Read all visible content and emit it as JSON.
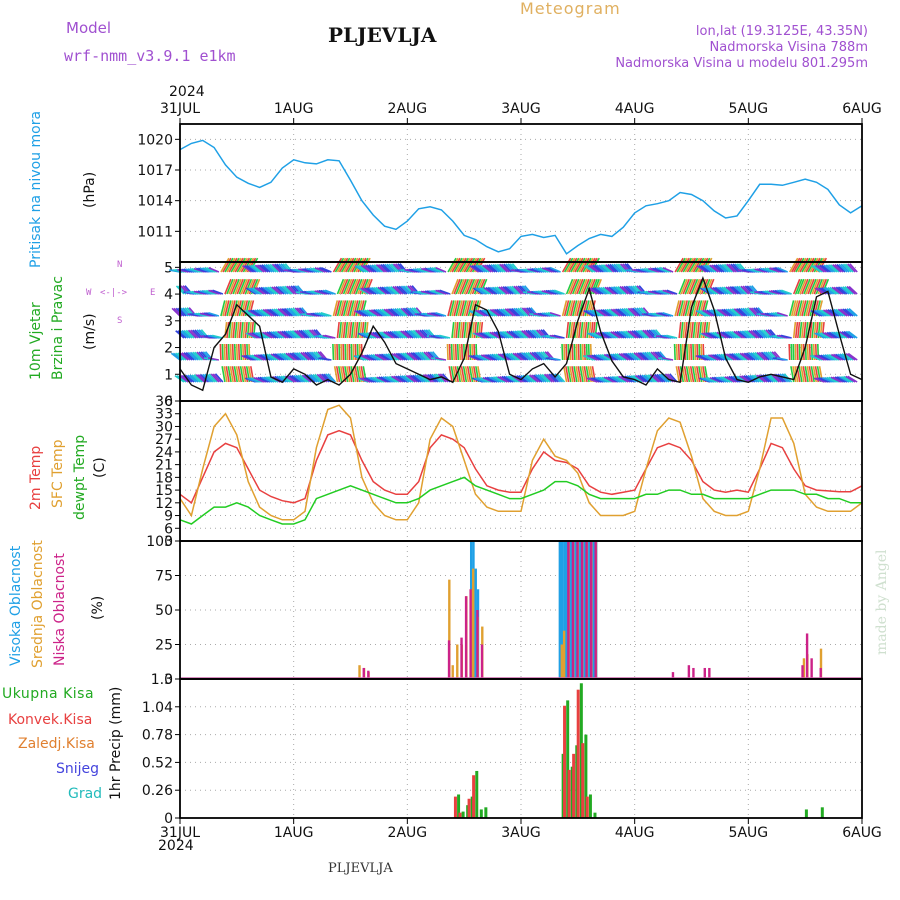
{
  "header": {
    "model_label": "Model",
    "model_name": "wrf-nmm_v3.9.1  e1km",
    "station": "PLJEVLJA",
    "meteogram_label": "Meteogram",
    "lonlat": "lon,lat (19.3125E, 43.35N)",
    "elevation": "Nadmorska Visina 788m",
    "model_elevation": "Nadmorska Visina u modelu 801.295m",
    "footer_station": "PLJEVLJA",
    "watermark": "made by Angel"
  },
  "colors": {
    "pressure": "#1fa0e6",
    "t2m": "#e84040",
    "sfc": "#e0a030",
    "dewpt": "#22cc22",
    "high_cloud": "#1fa0e6",
    "mid_cloud": "#e0a030",
    "low_cloud": "#cc2288",
    "total_precip": "#22aa22",
    "conv_precip": "#e84040",
    "frozen_precip": "#e08030",
    "snow": "#4444dd",
    "hail": "#22bbbb",
    "header_purple": "#a050d0",
    "header_orange": "#e0b060"
  },
  "chart_data": [
    {
      "type": "line",
      "title": "",
      "ylabel": "Pritisak na nivou mora",
      "yunit": "(hPa)",
      "ylim": [
        1008,
        1021.5
      ],
      "yticks": [
        1011,
        1014,
        1017,
        1020
      ],
      "xticks": [
        "31JUL",
        "1AUG",
        "2AUG",
        "3AUG",
        "4AUG",
        "5AUG",
        "6AUG"
      ],
      "year_label": "2024",
      "x_days": [
        0,
        0.1,
        0.2,
        0.3,
        0.4,
        0.5,
        0.6,
        0.7,
        0.8,
        0.9,
        1.0,
        1.1,
        1.2,
        1.3,
        1.4,
        1.5,
        1.6,
        1.7,
        1.8,
        1.9,
        2.0,
        2.1,
        2.2,
        2.3,
        2.4,
        2.5,
        2.6,
        2.7,
        2.8,
        2.9,
        3.0,
        3.1,
        3.2,
        3.3,
        3.4,
        3.5,
        3.6,
        3.7,
        3.8,
        3.9,
        4.0,
        4.1,
        4.2,
        4.3,
        4.4,
        4.5,
        4.6,
        4.7,
        4.8,
        4.9,
        5.0,
        5.1,
        5.2,
        5.3,
        5.4,
        5.5,
        5.6,
        5.7,
        5.8,
        5.9,
        6.0
      ],
      "series": [
        {
          "name": "",
          "values": [
            1019.0,
            1019.6,
            1019.9,
            1019.2,
            1017.5,
            1016.3,
            1015.7,
            1015.3,
            1015.8,
            1017.2,
            1018.0,
            1017.7,
            1017.6,
            1018.0,
            1017.9,
            1016.0,
            1014.0,
            1012.6,
            1011.5,
            1011.2,
            1012.0,
            1013.2,
            1013.4,
            1013.1,
            1012.0,
            1010.6,
            1010.2,
            1009.5,
            1009.0,
            1009.3,
            1010.5,
            1010.7,
            1010.4,
            1010.6,
            1008.8,
            1009.6,
            1010.3,
            1010.7,
            1010.5,
            1011.4,
            1012.8,
            1013.5,
            1013.7,
            1014.0,
            1014.8,
            1014.6,
            1014.0,
            1013.0,
            1012.3,
            1012.5,
            1014.0,
            1015.6,
            1015.6,
            1015.5,
            1015.8,
            1016.1,
            1015.8,
            1015.1,
            1013.6,
            1012.8,
            1013.5
          ]
        }
      ]
    },
    {
      "type": "line",
      "title": "",
      "ylabel": "10m Vjetar Brzina i Pravac",
      "yunit": "(m/s)",
      "ylim": [
        0,
        5.2
      ],
      "yticks": [
        0,
        1,
        2,
        3,
        4,
        5
      ],
      "compass": {
        "north": "N",
        "south": "S",
        "east": "E",
        "west": "W"
      },
      "x_days": [
        0,
        0.1,
        0.2,
        0.3,
        0.4,
        0.5,
        0.6,
        0.7,
        0.8,
        0.9,
        1.0,
        1.1,
        1.2,
        1.3,
        1.4,
        1.5,
        1.6,
        1.7,
        1.8,
        1.9,
        2.0,
        2.1,
        2.2,
        2.3,
        2.4,
        2.5,
        2.6,
        2.7,
        2.8,
        2.9,
        3.0,
        3.1,
        3.2,
        3.3,
        3.4,
        3.5,
        3.6,
        3.7,
        3.8,
        3.9,
        4.0,
        4.1,
        4.2,
        4.3,
        4.4,
        4.5,
        4.6,
        4.7,
        4.8,
        4.9,
        5.0,
        5.1,
        5.2,
        5.3,
        5.4,
        5.5,
        5.6,
        5.7,
        5.8,
        5.9,
        6.0
      ],
      "series": [
        {
          "name": "",
          "values": [
            1.2,
            0.6,
            0.4,
            2.0,
            2.5,
            3.6,
            3.2,
            2.8,
            0.9,
            0.7,
            1.2,
            1.0,
            0.6,
            0.8,
            0.6,
            1.0,
            1.8,
            2.8,
            2.2,
            1.4,
            1.2,
            1.0,
            0.8,
            0.9,
            0.7,
            1.6,
            3.6,
            3.4,
            2.6,
            1.0,
            0.8,
            1.2,
            1.4,
            0.9,
            1.4,
            3.0,
            4.2,
            2.6,
            1.5,
            0.9,
            0.8,
            0.6,
            1.2,
            0.8,
            0.7,
            3.5,
            4.6,
            3.4,
            1.6,
            0.8,
            0.7,
            0.9,
            1.0,
            0.9,
            0.8,
            2.0,
            3.9,
            4.1,
            2.5,
            1.0,
            0.8
          ]
        }
      ]
    },
    {
      "type": "line",
      "title": "",
      "ylabel": "2m Temp / SFC Temp / dewpt Temp",
      "yunit": "(C)",
      "ylim": [
        3,
        36
      ],
      "yticks": [
        3,
        6,
        9,
        12,
        15,
        18,
        21,
        24,
        27,
        30,
        33,
        36
      ],
      "x_days": [
        0,
        0.1,
        0.2,
        0.3,
        0.4,
        0.5,
        0.6,
        0.7,
        0.8,
        0.9,
        1.0,
        1.1,
        1.2,
        1.3,
        1.4,
        1.5,
        1.6,
        1.7,
        1.8,
        1.9,
        2.0,
        2.1,
        2.2,
        2.3,
        2.4,
        2.5,
        2.6,
        2.7,
        2.8,
        2.9,
        3.0,
        3.1,
        3.2,
        3.3,
        3.4,
        3.5,
        3.6,
        3.7,
        3.8,
        3.9,
        4.0,
        4.1,
        4.2,
        4.3,
        4.4,
        4.5,
        4.6,
        4.7,
        4.8,
        4.9,
        5.0,
        5.1,
        5.2,
        5.3,
        5.4,
        5.5,
        5.6,
        5.7,
        5.8,
        5.9,
        6.0
      ],
      "series": [
        {
          "name": "2m Temp",
          "values": [
            14,
            12,
            18,
            24,
            26,
            25,
            20,
            15,
            13.5,
            12.5,
            12,
            13,
            22,
            28,
            29,
            28,
            22,
            17,
            15,
            14,
            14,
            17,
            25,
            28,
            27,
            25,
            20,
            16,
            15,
            14.5,
            14.5,
            20,
            24,
            22,
            21.5,
            20,
            16,
            14.5,
            14,
            14.5,
            15,
            20,
            25,
            26,
            25,
            22,
            17,
            15,
            14.5,
            15,
            14.5,
            20,
            26,
            25,
            20,
            16,
            15,
            14.8,
            14.6,
            14.6,
            16
          ]
        },
        {
          "name": "SFC Temp",
          "values": [
            13,
            9,
            20,
            30,
            33,
            28,
            17,
            11,
            9,
            8,
            8,
            10,
            25,
            34,
            35,
            32,
            18,
            12,
            9,
            8,
            8,
            12,
            27,
            32,
            30,
            22,
            14,
            11,
            10,
            10,
            10,
            22,
            27,
            23,
            22,
            19,
            12,
            9,
            9,
            9,
            10,
            20,
            29,
            32,
            31,
            23,
            13,
            10,
            9,
            9,
            10,
            20,
            32,
            32,
            26,
            14,
            11,
            10,
            10,
            10,
            12
          ]
        },
        {
          "name": "dewpt Temp",
          "values": [
            8,
            7,
            9,
            11,
            11,
            12,
            11,
            9,
            8,
            7,
            7,
            8,
            13,
            14,
            15,
            16,
            15,
            14,
            13,
            12,
            12,
            13,
            15,
            16,
            17,
            18,
            16,
            15,
            14,
            13,
            13,
            14,
            15,
            17,
            17,
            16,
            14,
            13,
            13,
            13,
            13,
            14,
            14,
            15,
            15,
            14,
            14,
            13,
            13,
            13,
            13,
            14,
            15,
            15,
            15,
            14,
            14,
            13,
            13,
            12,
            12
          ]
        }
      ]
    },
    {
      "type": "bar",
      "title": "",
      "ylabel": "Visoka Oblacnost / Srednja Oblacnost / Niska Oblacnost",
      "yunit": "(%)",
      "ylim": [
        0,
        100
      ],
      "yticks": [
        0,
        25,
        50,
        75,
        100
      ],
      "series": [
        {
          "name": "Visoka Oblacnost",
          "x": [
            2.56,
            2.58,
            2.6,
            2.62,
            3.34,
            3.36,
            3.38,
            3.4,
            3.42,
            3.44,
            3.46,
            3.48,
            3.5,
            3.52,
            3.54,
            3.56,
            3.58,
            3.6,
            3.62,
            3.64,
            3.66
          ],
          "values": [
            100,
            100,
            80,
            65,
            100,
            100,
            100,
            100,
            100,
            100,
            100,
            100,
            100,
            100,
            100,
            100,
            100,
            100,
            100,
            100,
            100
          ]
        },
        {
          "name": "Srednja Oblacnost",
          "x": [
            1.56,
            1.6,
            1.64,
            2.35,
            2.38,
            2.42,
            2.46,
            2.5,
            2.54,
            2.56,
            2.6,
            2.64,
            3.34,
            3.36,
            3.4,
            3.44,
            3.48,
            3.52,
            3.56,
            3.6,
            3.64,
            5.47,
            5.5,
            5.62
          ],
          "values": [
            10,
            8,
            5,
            72,
            10,
            25,
            25,
            60,
            65,
            80,
            45,
            38,
            25,
            35,
            100,
            100,
            100,
            100,
            100,
            100,
            100,
            15,
            18,
            22
          ]
        },
        {
          "name": "Niska Oblacnost",
          "x": [
            1.58,
            1.62,
            2.33,
            2.44,
            2.48,
            2.52,
            2.58,
            2.62,
            3.38,
            3.42,
            3.46,
            3.5,
            3.54,
            3.58,
            3.62,
            4.3,
            4.44,
            4.48,
            4.58,
            4.62,
            5.44,
            5.48,
            5.52,
            5.6
          ],
          "values": [
            8,
            6,
            28,
            30,
            60,
            65,
            50,
            25,
            100,
            100,
            100,
            100,
            100,
            100,
            100,
            5,
            10,
            8,
            8,
            8,
            10,
            33,
            15,
            8
          ]
        }
      ]
    },
    {
      "type": "bar",
      "title": "",
      "ylabel": "1hr Precip",
      "yunit": "(mm)",
      "ylim": [
        0,
        1.3
      ],
      "yticks": [
        0,
        0.26,
        0.52,
        0.78,
        1.04,
        1.3
      ],
      "xticks": [
        "31JUL",
        "1AUG",
        "2AUG",
        "3AUG",
        "4AUG",
        "5AUG",
        "6AUG"
      ],
      "year_label": "2024",
      "legend": [
        "Ukupna Kisa",
        "Konvek.Kisa",
        "Zaledj.Kisa",
        "Snijeg",
        "Grad"
      ],
      "series": [
        {
          "name": "Ukupna Kisa",
          "x": [
            2.42,
            2.46,
            2.5,
            2.54,
            2.58,
            2.62,
            2.66,
            3.34,
            3.38,
            3.42,
            3.46,
            3.5,
            3.54,
            3.58,
            3.62,
            5.48,
            5.62
          ],
          "values": [
            0.22,
            0.06,
            0.12,
            0.2,
            0.44,
            0.08,
            0.1,
            0.6,
            1.1,
            0.48,
            0.68,
            1.26,
            0.78,
            0.22,
            0.05,
            0.08,
            0.1
          ]
        },
        {
          "name": "Konvek.Kisa",
          "x": [
            2.41,
            2.45,
            2.53,
            2.57,
            3.37,
            3.41,
            3.45,
            3.49,
            3.53,
            3.57
          ],
          "values": [
            0.2,
            0.05,
            0.18,
            0.4,
            1.05,
            0.45,
            0.6,
            1.2,
            0.7,
            0.2
          ]
        }
      ]
    }
  ]
}
